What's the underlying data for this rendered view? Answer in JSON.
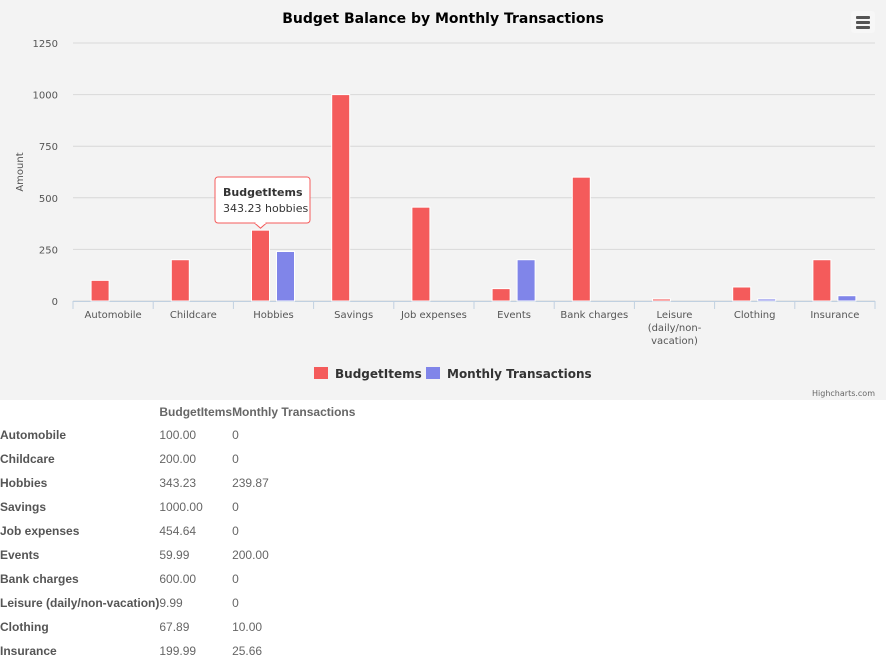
{
  "chart_data": {
    "type": "bar",
    "title": "Budget Balance by Monthly Transactions",
    "ylabel": "Amount",
    "xlabel": "",
    "ylim": [
      0,
      1250
    ],
    "yticks": [
      0,
      250,
      500,
      750,
      1000,
      1250
    ],
    "categories": [
      "Automobile",
      "Childcare",
      "Hobbies",
      "Savings",
      "Job expenses",
      "Events",
      "Bank charges",
      "Leisure (daily/non-vacation)",
      "Clothing",
      "Insurance"
    ],
    "category_display": [
      [
        "Automobile"
      ],
      [
        "Childcare"
      ],
      [
        "Hobbies"
      ],
      [
        "Savings"
      ],
      [
        "Job expenses"
      ],
      [
        "Events"
      ],
      [
        "Bank charges"
      ],
      [
        "Leisure",
        "(daily/non-",
        "vacation)"
      ],
      [
        "Clothing"
      ],
      [
        "Insurance"
      ]
    ],
    "series": [
      {
        "name": "BudgetItems",
        "color": "#f45b5b",
        "values": [
          100,
          200,
          343.23,
          1000,
          454.64,
          59.99,
          600,
          9.99,
          67.89,
          199.99
        ]
      },
      {
        "name": "Monthly Transactions",
        "color": "#8085e9",
        "values": [
          0,
          0,
          239.87,
          0,
          0,
          200,
          0,
          0,
          10,
          25.66
        ]
      }
    ],
    "legend_position": "bottom",
    "grid": true,
    "credits": "Highcharts.com",
    "tooltip": {
      "title": "BudgetItems",
      "text": "343.23 hobbies",
      "category_index": 2,
      "series_index": 0
    }
  },
  "table": {
    "headers": [
      "",
      "BudgetItems",
      "Monthly Transactions"
    ],
    "rows": [
      {
        "label": "Automobile",
        "budget": "100.00",
        "monthly": "0"
      },
      {
        "label": "Childcare",
        "budget": "200.00",
        "monthly": "0"
      },
      {
        "label": "Hobbies",
        "budget": "343.23",
        "monthly": "239.87"
      },
      {
        "label": "Savings",
        "budget": "1000.00",
        "monthly": "0"
      },
      {
        "label": "Job expenses",
        "budget": "454.64",
        "monthly": "0"
      },
      {
        "label": "Events",
        "budget": "59.99",
        "monthly": "200.00"
      },
      {
        "label": "Bank charges",
        "budget": "600.00",
        "monthly": "0"
      },
      {
        "label": "Leisure (daily/non-vacation)",
        "budget": "9.99",
        "monthly": "0"
      },
      {
        "label": "Clothing",
        "budget": "67.89",
        "monthly": "10.00"
      },
      {
        "label": "Insurance",
        "budget": "199.99",
        "monthly": "25.66"
      }
    ]
  },
  "icons": {
    "menu": "hamburger-menu-icon"
  }
}
